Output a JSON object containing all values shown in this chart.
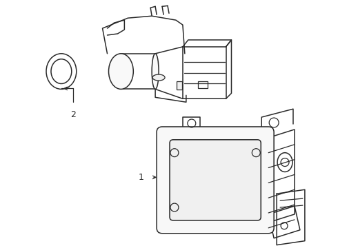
{
  "background_color": "#ffffff",
  "line_color": "#2a2a2a",
  "line_width": 1.1,
  "label1": "1",
  "label2": "2"
}
